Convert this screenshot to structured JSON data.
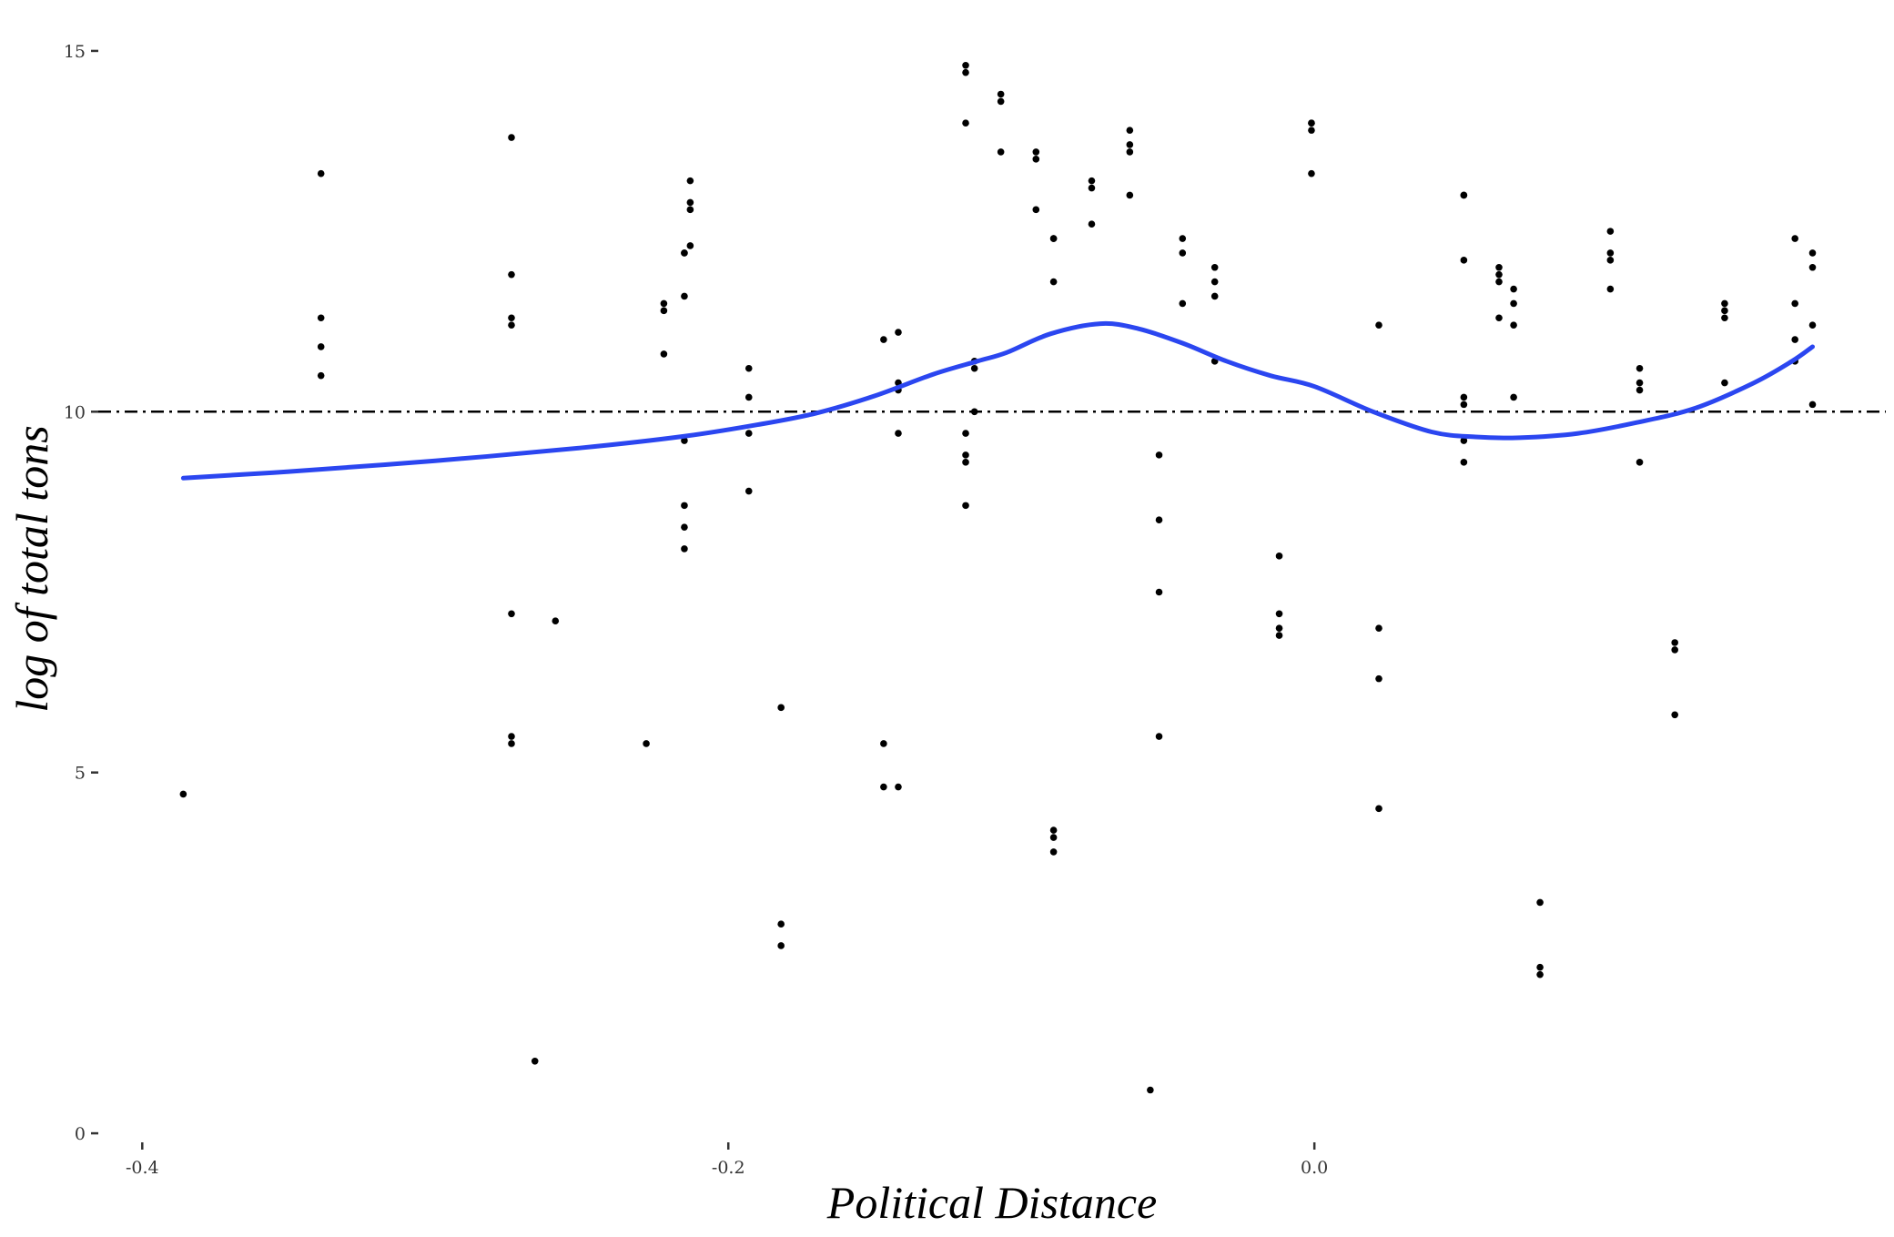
{
  "chart_data": {
    "type": "scatter",
    "title": "",
    "xlabel": "Political Distance",
    "ylabel": "log of total tons",
    "xlim": [
      -0.415,
      0.195
    ],
    "ylim": [
      -0.1,
      15.1
    ],
    "x_ticks": [
      -0.4,
      -0.2,
      0.0
    ],
    "x_tick_labels": [
      "-0.4",
      "-0.2",
      "0.0"
    ],
    "y_ticks": [
      0,
      5,
      10,
      15
    ],
    "y_tick_labels": [
      "0",
      "5",
      "10",
      "15"
    ],
    "grid": false,
    "legend": "none",
    "reference_line": {
      "y": 10,
      "style": "dashdot",
      "color": "#000000"
    },
    "smooth_color": "#2b46f0",
    "point_color": "#000000",
    "points": [
      {
        "x": -0.386,
        "y": 4.7
      },
      {
        "x": -0.339,
        "y": 13.3
      },
      {
        "x": -0.339,
        "y": 11.3
      },
      {
        "x": -0.339,
        "y": 10.9
      },
      {
        "x": -0.339,
        "y": 10.5
      },
      {
        "x": -0.274,
        "y": 13.8
      },
      {
        "x": -0.274,
        "y": 11.9
      },
      {
        "x": -0.274,
        "y": 11.3
      },
      {
        "x": -0.274,
        "y": 11.2
      },
      {
        "x": -0.274,
        "y": 7.2
      },
      {
        "x": -0.274,
        "y": 5.5
      },
      {
        "x": -0.274,
        "y": 5.4
      },
      {
        "x": -0.266,
        "y": 1.0
      },
      {
        "x": -0.259,
        "y": 7.1
      },
      {
        "x": -0.228,
        "y": 5.4
      },
      {
        "x": -0.222,
        "y": 11.5
      },
      {
        "x": -0.222,
        "y": 11.4
      },
      {
        "x": -0.222,
        "y": 10.8
      },
      {
        "x": -0.215,
        "y": 12.2
      },
      {
        "x": -0.215,
        "y": 12.2
      },
      {
        "x": -0.215,
        "y": 11.6
      },
      {
        "x": -0.215,
        "y": 9.6
      },
      {
        "x": -0.215,
        "y": 8.7
      },
      {
        "x": -0.215,
        "y": 8.4
      },
      {
        "x": -0.215,
        "y": 8.1
      },
      {
        "x": -0.213,
        "y": 13.2
      },
      {
        "x": -0.213,
        "y": 12.9
      },
      {
        "x": -0.213,
        "y": 12.8
      },
      {
        "x": -0.213,
        "y": 12.3
      },
      {
        "x": -0.193,
        "y": 10.6
      },
      {
        "x": -0.193,
        "y": 10.2
      },
      {
        "x": -0.193,
        "y": 9.7
      },
      {
        "x": -0.193,
        "y": 8.9
      },
      {
        "x": -0.182,
        "y": 5.9
      },
      {
        "x": -0.182,
        "y": 2.9
      },
      {
        "x": -0.182,
        "y": 2.6
      },
      {
        "x": -0.147,
        "y": 11.0
      },
      {
        "x": -0.147,
        "y": 5.4
      },
      {
        "x": -0.147,
        "y": 4.8
      },
      {
        "x": -0.142,
        "y": 11.1
      },
      {
        "x": -0.142,
        "y": 10.4
      },
      {
        "x": -0.142,
        "y": 10.3
      },
      {
        "x": -0.142,
        "y": 9.7
      },
      {
        "x": -0.142,
        "y": 4.8
      },
      {
        "x": -0.119,
        "y": 14.8
      },
      {
        "x": -0.119,
        "y": 14.7
      },
      {
        "x": -0.119,
        "y": 14.0
      },
      {
        "x": -0.119,
        "y": 9.7
      },
      {
        "x": -0.119,
        "y": 9.4
      },
      {
        "x": -0.119,
        "y": 9.3
      },
      {
        "x": -0.119,
        "y": 8.7
      },
      {
        "x": -0.116,
        "y": 10.7
      },
      {
        "x": -0.116,
        "y": 10.6
      },
      {
        "x": -0.116,
        "y": 10.0
      },
      {
        "x": -0.107,
        "y": 14.4
      },
      {
        "x": -0.107,
        "y": 14.3
      },
      {
        "x": -0.107,
        "y": 13.6
      },
      {
        "x": -0.095,
        "y": 13.6
      },
      {
        "x": -0.095,
        "y": 13.5
      },
      {
        "x": -0.095,
        "y": 12.8
      },
      {
        "x": -0.089,
        "y": 12.4
      },
      {
        "x": -0.089,
        "y": 12.4
      },
      {
        "x": -0.089,
        "y": 11.8
      },
      {
        "x": -0.089,
        "y": 4.2
      },
      {
        "x": -0.089,
        "y": 4.1
      },
      {
        "x": -0.089,
        "y": 3.9
      },
      {
        "x": -0.076,
        "y": 13.2
      },
      {
        "x": -0.076,
        "y": 13.1
      },
      {
        "x": -0.076,
        "y": 12.6
      },
      {
        "x": -0.063,
        "y": 13.9
      },
      {
        "x": -0.063,
        "y": 13.7
      },
      {
        "x": -0.063,
        "y": 13.6
      },
      {
        "x": -0.063,
        "y": 13.0
      },
      {
        "x": -0.053,
        "y": 9.4
      },
      {
        "x": -0.053,
        "y": 8.5
      },
      {
        "x": -0.053,
        "y": 7.5
      },
      {
        "x": -0.053,
        "y": 5.5
      },
      {
        "x": -0.056,
        "y": 0.6
      },
      {
        "x": -0.045,
        "y": 12.4
      },
      {
        "x": -0.045,
        "y": 12.2
      },
      {
        "x": -0.045,
        "y": 11.5
      },
      {
        "x": -0.034,
        "y": 12.0
      },
      {
        "x": -0.034,
        "y": 11.8
      },
      {
        "x": -0.034,
        "y": 11.6
      },
      {
        "x": -0.034,
        "y": 10.7
      },
      {
        "x": -0.012,
        "y": 8.0
      },
      {
        "x": -0.012,
        "y": 7.2
      },
      {
        "x": -0.012,
        "y": 7.0
      },
      {
        "x": -0.012,
        "y": 6.9
      },
      {
        "x": -0.001,
        "y": 14.0
      },
      {
        "x": -0.001,
        "y": 14.0
      },
      {
        "x": -0.001,
        "y": 13.9
      },
      {
        "x": -0.001,
        "y": 13.3
      },
      {
        "x": 0.022,
        "y": 11.2
      },
      {
        "x": 0.022,
        "y": 7.0
      },
      {
        "x": 0.022,
        "y": 6.3
      },
      {
        "x": 0.022,
        "y": 4.5
      },
      {
        "x": 0.051,
        "y": 13.0
      },
      {
        "x": 0.051,
        "y": 13.0
      },
      {
        "x": 0.051,
        "y": 12.1
      },
      {
        "x": 0.051,
        "y": 10.2
      },
      {
        "x": 0.051,
        "y": 10.1
      },
      {
        "x": 0.051,
        "y": 9.6
      },
      {
        "x": 0.051,
        "y": 9.3
      },
      {
        "x": 0.063,
        "y": 12.0
      },
      {
        "x": 0.063,
        "y": 11.9
      },
      {
        "x": 0.063,
        "y": 11.8
      },
      {
        "x": 0.063,
        "y": 11.3
      },
      {
        "x": 0.068,
        "y": 11.7
      },
      {
        "x": 0.068,
        "y": 11.5
      },
      {
        "x": 0.068,
        "y": 11.2
      },
      {
        "x": 0.068,
        "y": 10.2
      },
      {
        "x": 0.077,
        "y": 3.2
      },
      {
        "x": 0.077,
        "y": 2.3
      },
      {
        "x": 0.077,
        "y": 2.2
      },
      {
        "x": 0.101,
        "y": 12.5
      },
      {
        "x": 0.101,
        "y": 12.2
      },
      {
        "x": 0.101,
        "y": 12.1
      },
      {
        "x": 0.101,
        "y": 11.7
      },
      {
        "x": 0.111,
        "y": 10.6
      },
      {
        "x": 0.111,
        "y": 10.4
      },
      {
        "x": 0.111,
        "y": 10.3
      },
      {
        "x": 0.111,
        "y": 9.3
      },
      {
        "x": 0.123,
        "y": 6.8
      },
      {
        "x": 0.123,
        "y": 6.7
      },
      {
        "x": 0.123,
        "y": 5.8
      },
      {
        "x": 0.14,
        "y": 11.5
      },
      {
        "x": 0.14,
        "y": 11.4
      },
      {
        "x": 0.14,
        "y": 11.3
      },
      {
        "x": 0.14,
        "y": 10.4
      },
      {
        "x": 0.164,
        "y": 12.4
      },
      {
        "x": 0.164,
        "y": 11.5
      },
      {
        "x": 0.164,
        "y": 11.0
      },
      {
        "x": 0.164,
        "y": 10.7
      },
      {
        "x": 0.17,
        "y": 12.2
      },
      {
        "x": 0.17,
        "y": 12.0
      },
      {
        "x": 0.17,
        "y": 11.2
      },
      {
        "x": 0.17,
        "y": 10.1
      }
    ],
    "smooth": [
      {
        "x": -0.386,
        "y": 9.08
      },
      {
        "x": -0.35,
        "y": 9.17
      },
      {
        "x": -0.3,
        "y": 9.32
      },
      {
        "x": -0.25,
        "y": 9.5
      },
      {
        "x": -0.215,
        "y": 9.66
      },
      {
        "x": -0.19,
        "y": 9.82
      },
      {
        "x": -0.17,
        "y": 9.98
      },
      {
        "x": -0.15,
        "y": 10.22
      },
      {
        "x": -0.13,
        "y": 10.52
      },
      {
        "x": -0.115,
        "y": 10.7
      },
      {
        "x": -0.105,
        "y": 10.82
      },
      {
        "x": -0.09,
        "y": 11.08
      },
      {
        "x": -0.073,
        "y": 11.22
      },
      {
        "x": -0.06,
        "y": 11.15
      },
      {
        "x": -0.045,
        "y": 10.95
      },
      {
        "x": -0.03,
        "y": 10.7
      },
      {
        "x": -0.015,
        "y": 10.5
      },
      {
        "x": 0.0,
        "y": 10.35
      },
      {
        "x": 0.02,
        "y": 10.0
      },
      {
        "x": 0.04,
        "y": 9.72
      },
      {
        "x": 0.055,
        "y": 9.65
      },
      {
        "x": 0.07,
        "y": 9.64
      },
      {
        "x": 0.09,
        "y": 9.7
      },
      {
        "x": 0.11,
        "y": 9.85
      },
      {
        "x": 0.13,
        "y": 10.05
      },
      {
        "x": 0.15,
        "y": 10.4
      },
      {
        "x": 0.163,
        "y": 10.7
      },
      {
        "x": 0.17,
        "y": 10.9
      }
    ]
  }
}
